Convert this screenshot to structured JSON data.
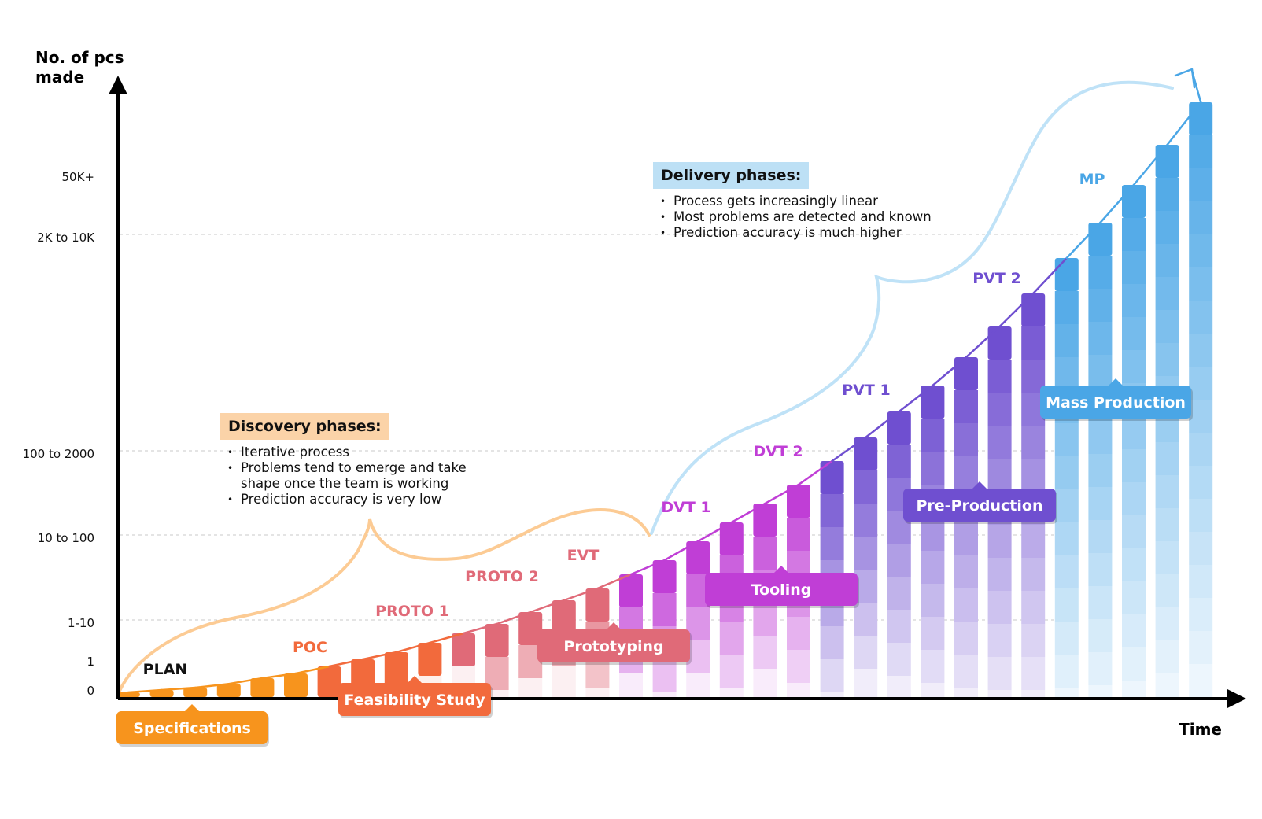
{
  "chart_data": {
    "type": "bar",
    "y_axis_label": "No. of pcs made",
    "x_axis_label": "Time",
    "y_ticks": [
      "0",
      "1",
      "1-10",
      "10 to 100",
      "100 to 2000",
      "2K to 10K",
      "50K+"
    ],
    "values": [
      1,
      1.5,
      2,
      2.8,
      4,
      5,
      6.5,
      8,
      9.5,
      11.5,
      13.5,
      15.5,
      18,
      20.5,
      23,
      26,
      29,
      33,
      37,
      41,
      45,
      50,
      55,
      60.5,
      66,
      72,
      78.5,
      85.5,
      93,
      100.5,
      108.5,
      117,
      126
    ],
    "phase_labels": [
      {
        "text": "PLAN",
        "bar": 1
      },
      {
        "text": "POC",
        "bar": 6
      },
      {
        "text": "PROTO 1",
        "bar": 9
      },
      {
        "text": "PROTO 2",
        "bar": 12
      },
      {
        "text": "EVT",
        "bar": 14
      },
      {
        "text": "DVT 1",
        "bar": 16
      },
      {
        "text": "DVT 2",
        "bar": 20
      },
      {
        "text": "PVT 1",
        "bar": 23
      },
      {
        "text": "PVT 2",
        "bar": 27
      },
      {
        "text": "MP",
        "bar": 30
      }
    ],
    "stages": [
      {
        "name": "Specifications",
        "color": "#f7941d"
      },
      {
        "name": "Feasibility Study",
        "color": "#f26a3c"
      },
      {
        "name": "Prototyping",
        "color": "#e06a78"
      },
      {
        "name": "Tooling",
        "color": "#c03ed6"
      },
      {
        "name": "Pre-Production",
        "color": "#6f4fd0"
      },
      {
        "name": "Mass Production",
        "color": "#4aa6e6"
      }
    ]
  },
  "notes": {
    "discovery": {
      "title": "Discovery phases:",
      "bullets": [
        "Iterative process",
        "Problems tend to emerge and take shape once the team is working",
        "Prediction accuracy is very low"
      ]
    },
    "delivery": {
      "title": "Delivery phases:",
      "bullets": [
        "Process gets increasingly linear",
        "Most problems are detected and known",
        "Prediction accuracy is much higher"
      ]
    }
  }
}
